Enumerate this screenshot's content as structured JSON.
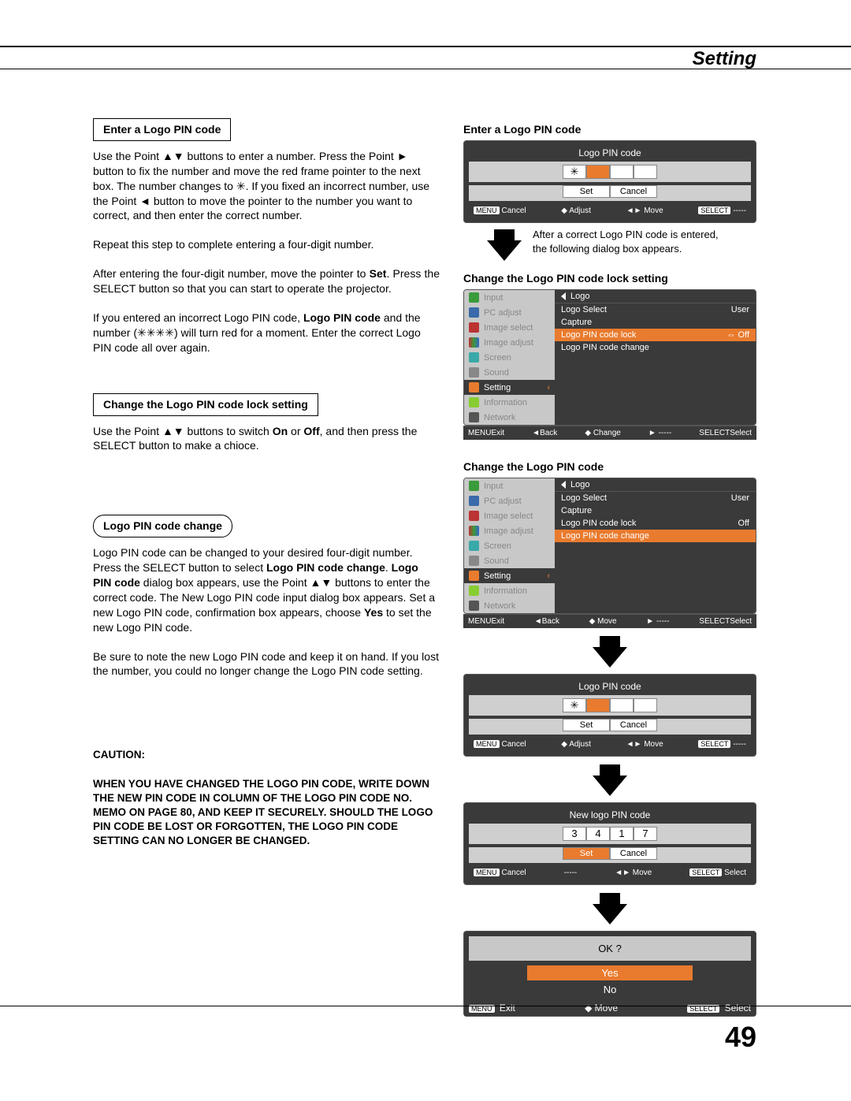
{
  "page": {
    "header": "Setting",
    "number": "49"
  },
  "left": {
    "h1": "Enter a Logo PIN code",
    "p1": "Use the Point ▲▼ buttons to enter a number. Press the Point ► button to fix the number and move the red frame pointer to the next box. The number changes to ✳. If you fixed an incorrect number, use the Point ◄ button to move the pointer to the number you want to correct, and then enter the correct number.",
    "p2": "Repeat this step to complete entering a four-digit number.",
    "p3a": "After entering the four-digit number, move the pointer to ",
    "p3b": "Set",
    "p3c": ". Press the SELECT button so that you can start to operate the projector.",
    "p4a": "If you entered an incorrect Logo PIN code, ",
    "p4b": "Logo PIN code",
    "p4c": " and the number (✳✳✳✳) will turn red for a moment. Enter the correct Logo PIN code all over again.",
    "h2": "Change the Logo PIN code lock setting",
    "p5a": "Use the Point ▲▼ buttons to switch ",
    "p5on": "On",
    "p5or": " or ",
    "p5off": "Off",
    "p5b": ", and then press the SELECT button to make a chioce.",
    "h3": "Logo PIN code change",
    "p6a": "Logo PIN code can be changed to your desired four-digit number. Press the SELECT button to select ",
    "p6b": "Logo PIN code change",
    "p6c": ". ",
    "p6d": "Logo PIN code",
    "p6e": " dialog box appears, use the Point ▲▼ buttons to enter the correct code. The New Logo PIN code input dialog box appears. Set a new Logo PIN code, confirmation box appears, choose ",
    "p6f": "Yes",
    "p6g": " to set the new Logo PIN code.",
    "p7": "Be sure to note the new Logo PIN code and keep it on hand. If you lost the number, you could no longer change the Logo PIN code setting.",
    "caution_h": "CAUTION:",
    "caution_p": "WHEN YOU HAVE CHANGED THE LOGO PIN CODE, WRITE DOWN THE NEW PIN CODE IN COLUMN OF THE LOGO PIN CODE NO. MEMO ON PAGE 80, AND KEEP IT SECURELY. SHOULD THE LOGO PIN CODE BE LOST OR FORGOTTEN, THE LOGO PIN CODE SETTING CAN NO LONGER BE CHANGED."
  },
  "right": {
    "h1": "Enter a Logo PIN code",
    "arrow_note": "After a correct Logo PIN code is entered, the following dialog box appears.",
    "h2": "Change the Logo PIN code lock setting",
    "h3": "Change the Logo PIN code"
  },
  "osd": {
    "pin1": {
      "title": "Logo PIN code",
      "cells": [
        "✳",
        "",
        "",
        ""
      ],
      "btns": [
        "Set",
        "Cancel"
      ],
      "status": {
        "a_tag": "MENU",
        "a": "Cancel",
        "b": "Adjust",
        "c": "Move",
        "d_tag": "SELECT",
        "d": "-----"
      }
    },
    "menu_common": {
      "sidebar": [
        {
          "label": "Input",
          "ic": "ic-green"
        },
        {
          "label": "PC adjust",
          "ic": "ic-blue"
        },
        {
          "label": "Image select",
          "ic": "ic-red"
        },
        {
          "label": "Image adjust",
          "ic": "ic-rgb"
        },
        {
          "label": "Screen",
          "ic": "ic-cyan"
        },
        {
          "label": "Sound",
          "ic": "ic-gray"
        },
        {
          "label": "Setting",
          "ic": "ic-orange",
          "sel": true
        },
        {
          "label": "Information",
          "ic": "ic-lime"
        },
        {
          "label": "Network",
          "ic": "ic-dgray"
        }
      ],
      "header": "Logo"
    },
    "menu1": {
      "rows": [
        {
          "l": "Logo Select",
          "r": "User"
        },
        {
          "l": "Capture",
          "r": ""
        },
        {
          "l": "Logo PIN code lock",
          "r": "⇔ Off",
          "hl": true
        },
        {
          "l": "Logo PIN code change",
          "r": ""
        }
      ],
      "status": {
        "a_tag": "MENU",
        "a": "Exit",
        "b": "◄Back",
        "c": "Change",
        "d": "-----",
        "e_tag": "SELECT",
        "e": "Select"
      }
    },
    "menu2": {
      "rows": [
        {
          "l": "Logo Select",
          "r": "User"
        },
        {
          "l": "Capture",
          "r": ""
        },
        {
          "l": "Logo PIN code lock",
          "r": "Off"
        },
        {
          "l": "Logo PIN code change",
          "r": "",
          "hl": true
        }
      ],
      "status": {
        "a_tag": "MENU",
        "a": "Exit",
        "b": "◄Back",
        "c": "Move",
        "d": "-----",
        "e_tag": "SELECT",
        "e": "Select"
      }
    },
    "pin2": {
      "title": "Logo PIN code",
      "cells": [
        "✳",
        "",
        "",
        ""
      ],
      "btns": [
        "Set",
        "Cancel"
      ],
      "status": {
        "a_tag": "MENU",
        "a": "Cancel",
        "b": "Adjust",
        "c": "Move",
        "d_tag": "SELECT",
        "d": "-----"
      }
    },
    "pin3": {
      "title": "New logo PIN code",
      "cells": [
        "3",
        "4",
        "1",
        "7"
      ],
      "btns": [
        "Set",
        "Cancel"
      ],
      "active_btn": 0,
      "status": {
        "a_tag": "MENU",
        "a": "Cancel",
        "b": "-----",
        "c": "Move",
        "d_tag": "SELECT",
        "d": "Select"
      }
    },
    "ok": {
      "q": "OK ?",
      "yes": "Yes",
      "no": "No",
      "status": {
        "a_tag": "MENU",
        "a": "Exit",
        "b": "Move",
        "c_tag": "SELECT",
        "c": "Select"
      }
    }
  }
}
